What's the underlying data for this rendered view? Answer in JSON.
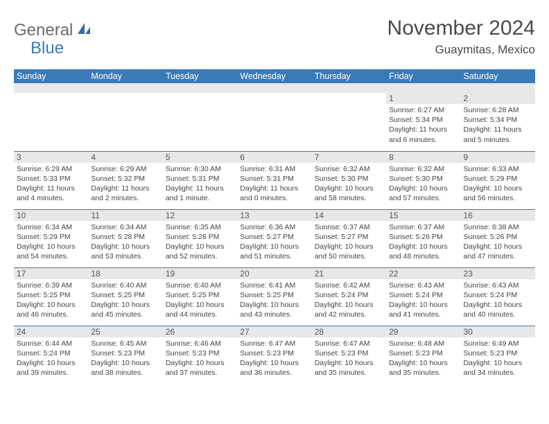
{
  "logo": {
    "text1": "General",
    "text2": "Blue"
  },
  "title": "November 2024",
  "location": "Guaymitas, Mexico",
  "colors": {
    "header_bg": "#3a7ab8",
    "header_fg": "#ffffff",
    "daynum_bg": "#e8e8e8",
    "border": "#3a7ab8",
    "text": "#333333",
    "logo_gray": "#6a6a6a",
    "logo_blue": "#3a7ab8"
  },
  "weekdays": [
    "Sunday",
    "Monday",
    "Tuesday",
    "Wednesday",
    "Thursday",
    "Friday",
    "Saturday"
  ],
  "weeks": [
    [
      null,
      null,
      null,
      null,
      null,
      {
        "n": "1",
        "sr": "6:27 AM",
        "ss": "5:34 PM",
        "dl": "11 hours and 6 minutes."
      },
      {
        "n": "2",
        "sr": "6:28 AM",
        "ss": "5:34 PM",
        "dl": "11 hours and 5 minutes."
      }
    ],
    [
      {
        "n": "3",
        "sr": "6:29 AM",
        "ss": "5:33 PM",
        "dl": "11 hours and 4 minutes."
      },
      {
        "n": "4",
        "sr": "6:29 AM",
        "ss": "5:32 PM",
        "dl": "11 hours and 2 minutes."
      },
      {
        "n": "5",
        "sr": "6:30 AM",
        "ss": "5:31 PM",
        "dl": "11 hours and 1 minute."
      },
      {
        "n": "6",
        "sr": "6:31 AM",
        "ss": "5:31 PM",
        "dl": "11 hours and 0 minutes."
      },
      {
        "n": "7",
        "sr": "6:32 AM",
        "ss": "5:30 PM",
        "dl": "10 hours and 58 minutes."
      },
      {
        "n": "8",
        "sr": "6:32 AM",
        "ss": "5:30 PM",
        "dl": "10 hours and 57 minutes."
      },
      {
        "n": "9",
        "sr": "6:33 AM",
        "ss": "5:29 PM",
        "dl": "10 hours and 56 minutes."
      }
    ],
    [
      {
        "n": "10",
        "sr": "6:34 AM",
        "ss": "5:29 PM",
        "dl": "10 hours and 54 minutes."
      },
      {
        "n": "11",
        "sr": "6:34 AM",
        "ss": "5:28 PM",
        "dl": "10 hours and 53 minutes."
      },
      {
        "n": "12",
        "sr": "6:35 AM",
        "ss": "5:28 PM",
        "dl": "10 hours and 52 minutes."
      },
      {
        "n": "13",
        "sr": "6:36 AM",
        "ss": "5:27 PM",
        "dl": "10 hours and 51 minutes."
      },
      {
        "n": "14",
        "sr": "6:37 AM",
        "ss": "5:27 PM",
        "dl": "10 hours and 50 minutes."
      },
      {
        "n": "15",
        "sr": "6:37 AM",
        "ss": "5:26 PM",
        "dl": "10 hours and 48 minutes."
      },
      {
        "n": "16",
        "sr": "6:38 AM",
        "ss": "5:26 PM",
        "dl": "10 hours and 47 minutes."
      }
    ],
    [
      {
        "n": "17",
        "sr": "6:39 AM",
        "ss": "5:25 PM",
        "dl": "10 hours and 46 minutes."
      },
      {
        "n": "18",
        "sr": "6:40 AM",
        "ss": "5:25 PM",
        "dl": "10 hours and 45 minutes."
      },
      {
        "n": "19",
        "sr": "6:40 AM",
        "ss": "5:25 PM",
        "dl": "10 hours and 44 minutes."
      },
      {
        "n": "20",
        "sr": "6:41 AM",
        "ss": "5:25 PM",
        "dl": "10 hours and 43 minutes."
      },
      {
        "n": "21",
        "sr": "6:42 AM",
        "ss": "5:24 PM",
        "dl": "10 hours and 42 minutes."
      },
      {
        "n": "22",
        "sr": "6:43 AM",
        "ss": "5:24 PM",
        "dl": "10 hours and 41 minutes."
      },
      {
        "n": "23",
        "sr": "6:43 AM",
        "ss": "5:24 PM",
        "dl": "10 hours and 40 minutes."
      }
    ],
    [
      {
        "n": "24",
        "sr": "6:44 AM",
        "ss": "5:24 PM",
        "dl": "10 hours and 39 minutes."
      },
      {
        "n": "25",
        "sr": "6:45 AM",
        "ss": "5:23 PM",
        "dl": "10 hours and 38 minutes."
      },
      {
        "n": "26",
        "sr": "6:46 AM",
        "ss": "5:23 PM",
        "dl": "10 hours and 37 minutes."
      },
      {
        "n": "27",
        "sr": "6:47 AM",
        "ss": "5:23 PM",
        "dl": "10 hours and 36 minutes."
      },
      {
        "n": "28",
        "sr": "6:47 AM",
        "ss": "5:23 PM",
        "dl": "10 hours and 35 minutes."
      },
      {
        "n": "29",
        "sr": "6:48 AM",
        "ss": "5:23 PM",
        "dl": "10 hours and 35 minutes."
      },
      {
        "n": "30",
        "sr": "6:49 AM",
        "ss": "5:23 PM",
        "dl": "10 hours and 34 minutes."
      }
    ]
  ],
  "labels": {
    "sunrise": "Sunrise:",
    "sunset": "Sunset:",
    "daylight": "Daylight:"
  }
}
